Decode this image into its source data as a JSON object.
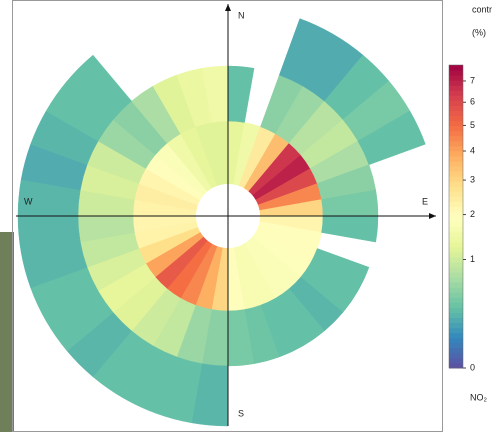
{
  "chart_data": {
    "type": "polar",
    "directions": {
      "north": "N",
      "east": "E",
      "south": "S",
      "west": "W"
    },
    "x": [
      0,
      10,
      20,
      30,
      40,
      50,
      60,
      70,
      80,
      90,
      100,
      110,
      120,
      130,
      140,
      150,
      160,
      170,
      180,
      190,
      200,
      210,
      220,
      230,
      240,
      250,
      260,
      270,
      280,
      290,
      300,
      310,
      320,
      330,
      340,
      350
    ],
    "series": [
      {
        "values": [
          1.3,
          1.5,
          2.5,
          3.5,
          6.5,
          7,
          6,
          4.5,
          3,
          2.2,
          2.0,
          2.0,
          1.9,
          1.8,
          1.8,
          1.7,
          1.7,
          2.0,
          3,
          3.8,
          4.5,
          5,
          5.5,
          4,
          2.8,
          2.3,
          2.2,
          2.3,
          2.4,
          2.2,
          2.0,
          1.8,
          1.5,
          1.3,
          1.2,
          1.2
        ]
      },
      {
        "values": [
          0.3,
          null,
          0.5,
          0.6,
          0.8,
          0.9,
          0.7,
          0.5,
          0.4,
          0.3,
          null,
          0.3,
          0.3,
          0.25,
          0.3,
          0.3,
          0.35,
          0.4,
          0.5,
          0.6,
          0.9,
          1.0,
          1.2,
          1.3,
          1.1,
          0.9,
          0.8,
          1.0,
          1.1,
          1.0,
          0.6,
          0.5,
          0.7,
          1.2,
          1.4,
          1.5
        ]
      },
      {
        "values": [
          null,
          null,
          0.2,
          0.2,
          0.3,
          0.4,
          0.3,
          null,
          null,
          null,
          null,
          null,
          null,
          null,
          null,
          null,
          null,
          null,
          0.25,
          0.3,
          0.3,
          0.3,
          0.25,
          0.3,
          0.3,
          0.25,
          0.25,
          0.25,
          0.2,
          0.25,
          0.3,
          0.3,
          null,
          null,
          null,
          null
        ]
      }
    ],
    "palette": [
      "#5e4fa2",
      "#3288bd",
      "#66c2a5",
      "#abdda4",
      "#e6f598",
      "#ffffbf",
      "#fee08b",
      "#fdae61",
      "#f46d43",
      "#d53e4f",
      "#9e0142"
    ],
    "colorbar_title": "contr",
    "colorbar_unit": "(%)",
    "clim": [
      0,
      7.8
    ],
    "cticks": [
      0,
      1,
      2,
      3,
      4,
      5,
      6,
      7
    ],
    "pollutant": "NO₂"
  }
}
